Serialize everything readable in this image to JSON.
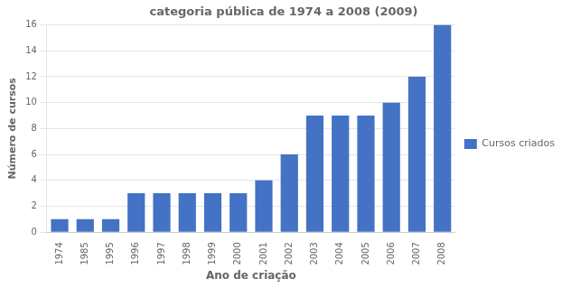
{
  "chart_data": {
    "type": "bar",
    "title": "categoria pública de 1974 a 2008 (2009)",
    "xlabel": "Ano de criação",
    "ylabel": "Número de cursos",
    "categories": [
      "1974",
      "1985",
      "1995",
      "1996",
      "1997",
      "1998",
      "1999",
      "2000",
      "2001",
      "2002",
      "2003",
      "2004",
      "2005",
      "2006",
      "2007",
      "2008"
    ],
    "series": [
      {
        "name": "Cursos criados",
        "color": "#4472C4",
        "values": [
          1,
          1,
          1,
          3,
          3,
          3,
          3,
          3,
          4,
          6,
          9,
          9,
          9,
          10,
          12,
          16
        ]
      }
    ],
    "ylim": [
      0,
      16
    ],
    "yticks": [
      0,
      2,
      4,
      6,
      8,
      10,
      12,
      14,
      16
    ],
    "grid": true,
    "legend": "right"
  }
}
